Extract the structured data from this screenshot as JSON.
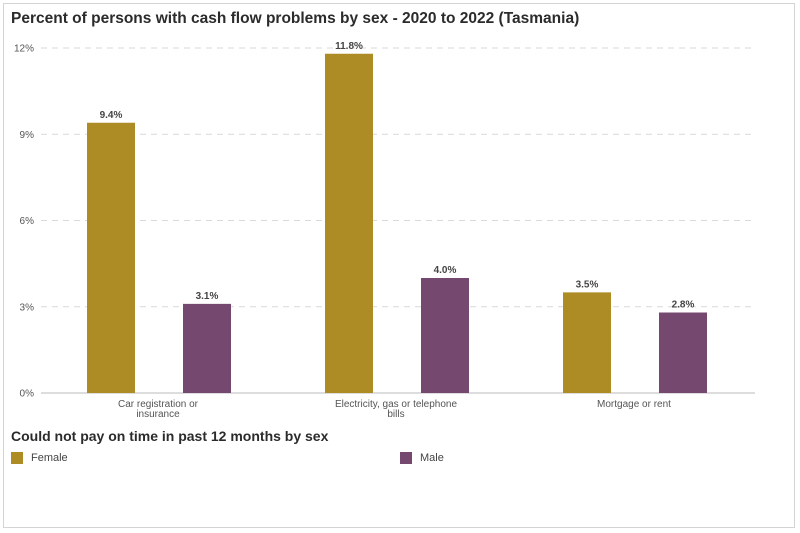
{
  "title": "Percent of persons with cash flow problems by sex - 2020 to 2022 (Tasmania)",
  "legend_title": "Could not pay on time in past 12 months by sex",
  "colors": {
    "female": "#ad8c26",
    "male": "#75496f",
    "grid": "#d9d9d9",
    "axis": "#bbbbbb"
  },
  "chart_data": {
    "type": "bar",
    "title": "Percent of persons with cash flow problems by sex - 2020 to 2022 (Tasmania)",
    "categories": [
      [
        "Car registration or",
        "insurance"
      ],
      [
        "Electricity, gas or telephone",
        "bills"
      ],
      [
        "Mortgage or rent"
      ]
    ],
    "series": [
      {
        "name": "Female",
        "values": [
          9.4,
          11.8,
          3.5
        ],
        "labels": [
          "9.4%",
          "11.8%",
          "3.5%"
        ]
      },
      {
        "name": "Male",
        "values": [
          3.1,
          4.0,
          2.8
        ],
        "labels": [
          "3.1%",
          "4.0%",
          "2.8%"
        ]
      }
    ],
    "ylim": [
      0,
      12
    ],
    "yticks": [
      0,
      3,
      6,
      9,
      12
    ],
    "ytick_labels": [
      "0%",
      "3%",
      "6%",
      "9%",
      "12%"
    ],
    "grid": true,
    "legend_position": "bottom"
  }
}
